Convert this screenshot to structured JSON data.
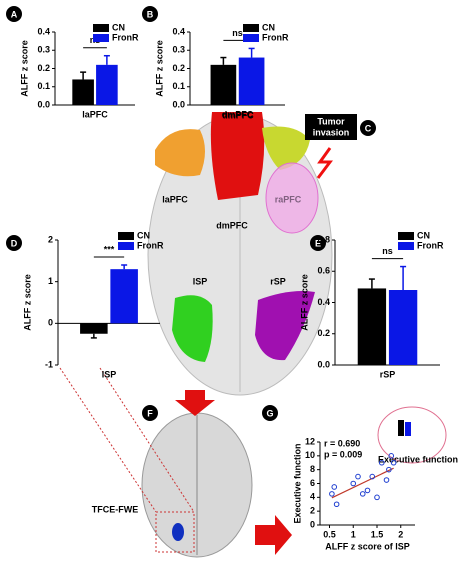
{
  "figure": {
    "panel_labels": [
      "A",
      "B",
      "C",
      "D",
      "E",
      "F",
      "G"
    ],
    "brain_labels": [
      "laPFC",
      "dmPFC",
      "raPFC",
      "dmPFC",
      "lSP",
      "rSP"
    ],
    "tumor_invasion": [
      "Tumor",
      "invasion"
    ],
    "method_label": "TFCE-FWE",
    "inset_label": "Executive function"
  },
  "chart_data": [
    {
      "type": "bar",
      "ylabel": "ALFF z score",
      "categories": [
        "laPFC"
      ],
      "ylim": [
        0,
        0.4
      ],
      "yticks": [
        {
          "value": 0,
          "label": "0.0"
        },
        0.1,
        0.2,
        0.3,
        0.4
      ],
      "series": [
        {
          "name": "CN",
          "color": "#000000",
          "values": [
            0.14
          ],
          "errors": [
            0.04
          ]
        },
        {
          "name": "FronR",
          "color": "#0a17e6",
          "values": [
            0.22
          ],
          "errors": [
            0.05
          ]
        }
      ],
      "annotation": "ns"
    },
    {
      "type": "bar",
      "ylabel": "ALFF z score",
      "categories": [
        "dmPFC"
      ],
      "ylim": [
        0,
        0.4
      ],
      "yticks": [
        {
          "value": 0,
          "label": "0.0"
        },
        0.1,
        0.2,
        0.3,
        0.4
      ],
      "series": [
        {
          "name": "CN",
          "color": "#000000",
          "values": [
            0.22
          ],
          "errors": [
            0.04
          ]
        },
        {
          "name": "FronR",
          "color": "#0a17e6",
          "values": [
            0.26
          ],
          "errors": [
            0.05
          ]
        }
      ],
      "annotation": "ns"
    },
    {
      "type": "bar",
      "ylabel": "ALFF z score",
      "categories": [
        "lSP"
      ],
      "ylim": [
        -1,
        2
      ],
      "yticks": [
        -1,
        0,
        1,
        2
      ],
      "series": [
        {
          "name": "CN",
          "color": "#000000",
          "values": [
            -0.25
          ],
          "errors": [
            0.1
          ]
        },
        {
          "name": "FronR",
          "color": "#0a17e6",
          "values": [
            1.3
          ],
          "errors": [
            0.1
          ]
        }
      ],
      "annotation": "***"
    },
    {
      "type": "bar",
      "ylabel": "ALFF z score",
      "categories": [
        "rSP"
      ],
      "ylim": [
        0,
        0.8
      ],
      "yticks": [
        {
          "value": 0,
          "label": "0.0"
        },
        0.2,
        0.4,
        0.6,
        0.8
      ],
      "series": [
        {
          "name": "CN",
          "color": "#000000",
          "values": [
            0.49
          ],
          "errors": [
            0.06
          ]
        },
        {
          "name": "FronR",
          "color": "#0a17e6",
          "values": [
            0.48
          ],
          "errors": [
            0.15
          ]
        }
      ],
      "annotation": "ns"
    },
    {
      "type": "scatter",
      "xlabel": "ALFF z score of lSP",
      "ylabel": "Executive function",
      "xlim": [
        0.3,
        2.3
      ],
      "xticks": [
        0.5,
        1,
        1.5,
        2
      ],
      "ylim": [
        0,
        12
      ],
      "yticks": [
        0,
        2,
        4,
        6,
        8,
        10,
        12
      ],
      "color": "#1f3fd0",
      "line_color": "#c0392b",
      "x": [
        0.55,
        0.6,
        0.65,
        1.0,
        1.1,
        1.2,
        1.3,
        1.4,
        1.5,
        1.6,
        1.7,
        1.75,
        1.8,
        1.85
      ],
      "values": [
        4.5,
        5.5,
        3,
        6,
        7,
        4.5,
        5,
        7,
        4,
        9,
        6.5,
        8,
        10,
        9
      ],
      "annotations": [
        "r = 0.690",
        "p = 0.009"
      ]
    }
  ]
}
